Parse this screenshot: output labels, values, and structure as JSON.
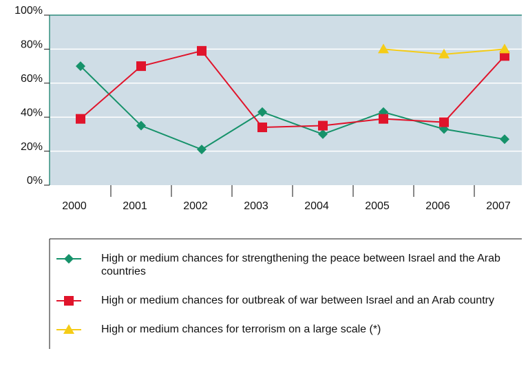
{
  "chart_data": {
    "type": "line",
    "categories": [
      "2000",
      "2001",
      "2002",
      "2003",
      "2004",
      "2005",
      "2006",
      "2007"
    ],
    "series": [
      {
        "name": "High or medium chances for strengthening the peace between Israel and the Arab countries",
        "color": "#16926a",
        "marker": "diamond",
        "values": [
          70,
          35,
          21,
          43,
          30,
          43,
          33,
          27
        ]
      },
      {
        "name": "High or medium chances for outbreak of war between Israel and an Arab country",
        "color": "#e0142b",
        "marker": "square",
        "values": [
          39,
          70,
          79,
          34,
          35,
          39,
          37,
          76
        ]
      },
      {
        "name": "High or medium chances for terrorism on a large scale (*)",
        "color": "#f5cc17",
        "marker": "triangle",
        "values": [
          null,
          null,
          null,
          null,
          null,
          80,
          77,
          80
        ]
      }
    ],
    "ylim": [
      0,
      100
    ],
    "yticks": [
      {
        "value": 0,
        "label": "0%"
      },
      {
        "value": 20,
        "label": "20%"
      },
      {
        "value": 40,
        "label": "40%"
      },
      {
        "value": 60,
        "label": "60%"
      },
      {
        "value": 80,
        "label": "80%"
      },
      {
        "value": 100,
        "label": "100%"
      }
    ],
    "grid": true
  }
}
